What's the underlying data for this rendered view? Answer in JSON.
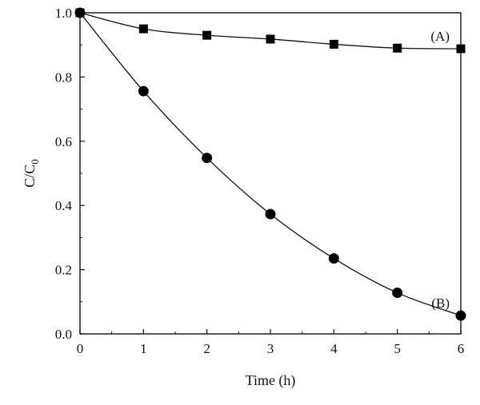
{
  "chart_data": {
    "type": "line",
    "xlabel": "Time (h)",
    "ylabel_main": "C/C",
    "ylabel_sub": "0",
    "xlim": [
      0,
      6
    ],
    "ylim": [
      0.0,
      1.0
    ],
    "xticks": [
      "0",
      "1",
      "2",
      "3",
      "4",
      "5",
      "6"
    ],
    "yticks": [
      "0.0",
      "0.2",
      "0.4",
      "0.6",
      "0.8",
      "1.0"
    ],
    "grid": false,
    "series": [
      {
        "name": "(A)",
        "marker": "square",
        "x": [
          0,
          1,
          2,
          3,
          4,
          5,
          6
        ],
        "y": [
          1.0,
          0.95,
          0.93,
          0.918,
          0.902,
          0.89,
          0.888
        ]
      },
      {
        "name": "(B)",
        "marker": "circle",
        "x": [
          0,
          1,
          2,
          3,
          4,
          5,
          6
        ],
        "y": [
          1.0,
          0.756,
          0.548,
          0.373,
          0.235,
          0.128,
          0.057
        ]
      }
    ],
    "colors": {
      "line": "#111111",
      "marker": "#000000"
    }
  }
}
